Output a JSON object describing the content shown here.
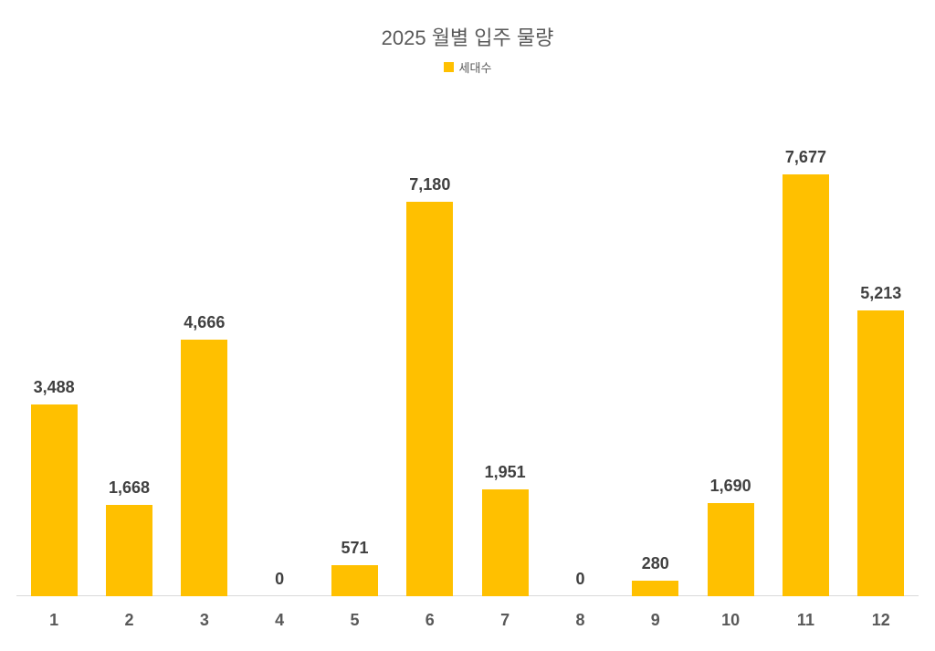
{
  "chart": {
    "type": "bar",
    "title": "2025 월별 입주 물량",
    "title_fontsize": 22,
    "title_color": "#595959",
    "legend_label": "세대수",
    "legend_fontsize": 13,
    "legend_color": "#595959",
    "legend_swatch_color": "#ffc000",
    "background_color": "#ffffff",
    "axis_line_color": "#d9d9d9",
    "bar_color": "#ffc000",
    "bar_width_ratio": 0.62,
    "y_max": 8200,
    "y_min": 0,
    "data_label_fontsize": 18,
    "data_label_color": "#404040",
    "x_tick_fontsize": 18,
    "x_tick_color": "#595959",
    "categories": [
      "1",
      "2",
      "3",
      "4",
      "5",
      "6",
      "7",
      "8",
      "9",
      "10",
      "11",
      "12"
    ],
    "values": [
      3488,
      1668,
      4666,
      0,
      571,
      7180,
      1951,
      0,
      280,
      1690,
      7677,
      5213
    ],
    "value_labels": [
      "3,488",
      "1,668",
      "4,666",
      "0",
      "571",
      "7,180",
      "1,951",
      "0",
      "280",
      "1,690",
      "7,677",
      "5,213"
    ]
  }
}
